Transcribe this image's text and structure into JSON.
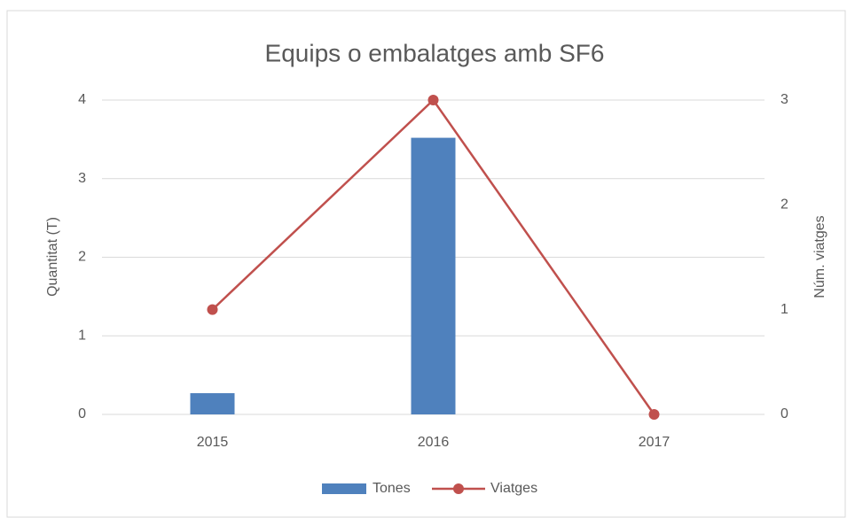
{
  "chart_data": {
    "type": "bar",
    "title": "Equips o embalatges amb SF6",
    "categories": [
      "2015",
      "2016",
      "2017"
    ],
    "series": [
      {
        "name": "Tones",
        "type": "bar",
        "color": "#4f81bd",
        "values": [
          0.27,
          3.52,
          0
        ]
      },
      {
        "name": "Viatges",
        "type": "line",
        "color": "#c0504d",
        "axis": "y2",
        "values": [
          1,
          3,
          0
        ]
      }
    ],
    "y_label": "Quantitat (T)",
    "y2_label": "Núm. viatges",
    "ylim": [
      0,
      4
    ],
    "yticks": [
      0,
      1,
      2,
      3,
      4
    ],
    "y2lim": [
      0,
      3
    ],
    "y2ticks": [
      0,
      1,
      2,
      3
    ],
    "grid": true,
    "legend": "bottom"
  }
}
